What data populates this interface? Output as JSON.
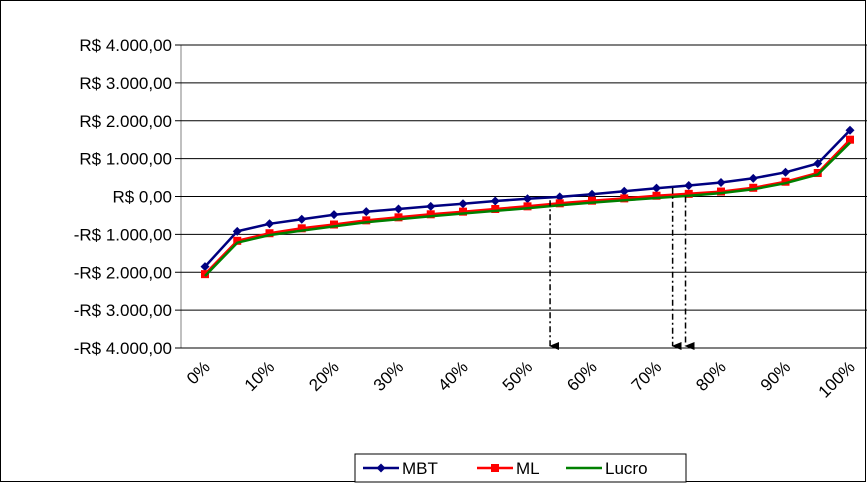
{
  "chart_data": {
    "type": "line",
    "title": "",
    "xlabel": "",
    "ylabel": "",
    "x_tick_labels": [
      "0%",
      "10%",
      "20%",
      "30%",
      "40%",
      "50%",
      "60%",
      "70%",
      "80%",
      "90%",
      "100%"
    ],
    "y_tick_labels": [
      "R$ 4.000,00",
      "R$ 3.000,00",
      "R$ 2.000,00",
      "R$ 1.000,00",
      "R$ 0,00",
      "-R$ 1.000,00",
      "-R$ 2.000,00",
      "-R$ 3.000,00",
      "-R$ 4.000,00"
    ],
    "ylim": [
      -4000,
      4000
    ],
    "grid": "horizontal",
    "legend_position": "bottom",
    "x_percent": [
      0,
      5,
      10,
      15,
      20,
      25,
      30,
      35,
      40,
      45,
      50,
      55,
      60,
      65,
      70,
      75,
      80,
      85,
      90,
      95,
      100
    ],
    "series": [
      {
        "name": "MBT",
        "color": "#000080",
        "marker": "diamond",
        "values": [
          -1850,
          -920,
          -720,
          -600,
          -480,
          -400,
          -330,
          -260,
          -190,
          -120,
          -60,
          -10,
          60,
          140,
          220,
          290,
          370,
          480,
          640,
          870,
          1750
        ]
      },
      {
        "name": "ML",
        "color": "#ff0000",
        "marker": "square",
        "values": [
          -2050,
          -1170,
          -970,
          -840,
          -740,
          -630,
          -550,
          -470,
          -400,
          -330,
          -260,
          -180,
          -110,
          -50,
          20,
          70,
          130,
          230,
          390,
          620,
          1500
        ]
      },
      {
        "name": "Lucro",
        "color": "#008000",
        "marker": "none",
        "values": [
          -2100,
          -1220,
          -1020,
          -900,
          -790,
          -680,
          -600,
          -520,
          -450,
          -380,
          -310,
          -230,
          -160,
          -100,
          -40,
          20,
          90,
          190,
          350,
          580,
          1420
        ]
      }
    ],
    "annotations": [
      {
        "type": "dashed-arrow",
        "x_percent": 53.5,
        "from_value": -100,
        "to_value": -4000
      },
      {
        "type": "dashed-arrow",
        "x_percent": 72.5,
        "from_value": 230,
        "to_value": -4000
      },
      {
        "type": "dashed-arrow",
        "x_percent": 74.5,
        "from_value": 0,
        "to_value": -4000
      }
    ]
  }
}
